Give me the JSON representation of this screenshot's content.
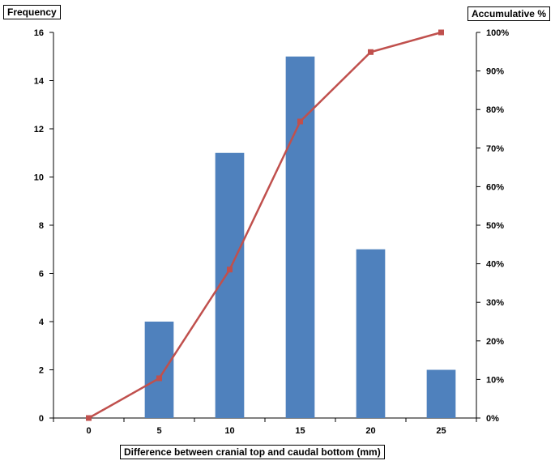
{
  "chart_data": {
    "type": "bar",
    "categories": [
      "0",
      "5",
      "10",
      "15",
      "20",
      "25"
    ],
    "series": [
      {
        "kind": "bar",
        "axis": "left",
        "color": "#4f81bd",
        "values": [
          0,
          4,
          11,
          15,
          7,
          2
        ]
      },
      {
        "kind": "line",
        "axis": "right",
        "color": "#c0504d",
        "marker": "square",
        "values": [
          0,
          10.3,
          38.5,
          76.9,
          94.9,
          100
        ]
      }
    ],
    "xlabel": "Difference between cranial top and caudal bottom (mm)",
    "ylabel": "Frequency",
    "y2label": "Accumulative %",
    "ylim": [
      0,
      16
    ],
    "yticks": [
      "0",
      "2",
      "4",
      "6",
      "8",
      "10",
      "12",
      "14",
      "16"
    ],
    "y2lim": [
      0,
      100
    ],
    "y2ticks": [
      "0%",
      "10%",
      "20%",
      "30%",
      "40%",
      "50%",
      "60%",
      "70%",
      "80%",
      "90%",
      "100%"
    ],
    "grid": false,
    "legend": "none"
  }
}
